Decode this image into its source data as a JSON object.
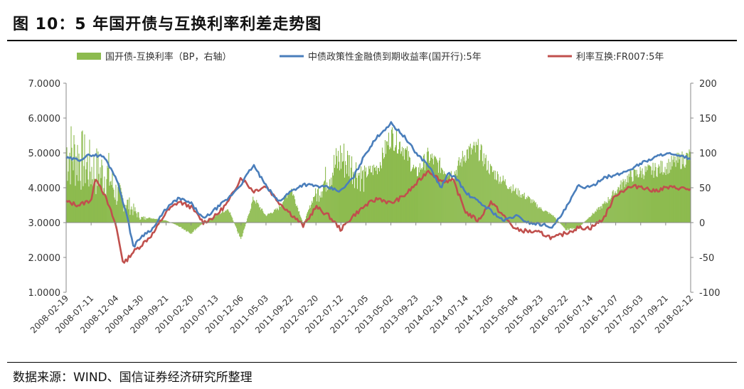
{
  "title": "图 10：5 年国开债与互换利率利差走势图",
  "source": "数据来源：WIND、国信证券经济研究所整理",
  "chart_data": {
    "type": "line",
    "legend": [
      {
        "name": "国开债-互换利率（BP，右轴）",
        "kind": "area",
        "color": "#8dbb4f"
      },
      {
        "name": "中债政策性金融债到期收益率(国开行):5年",
        "kind": "line",
        "color": "#4a7ebb"
      },
      {
        "name": "利率互换:FR007:5年",
        "kind": "line",
        "color": "#c0504d"
      }
    ],
    "x_ticks": [
      "2008-02-19",
      "2008-07-11",
      "2008-12-04",
      "2009-04-30",
      "2009-09-21",
      "2010-02-20",
      "2010-07-13",
      "2010-12-06",
      "2011-05-03",
      "2011-09-22",
      "2012-02-20",
      "2012-07-12",
      "2012-12-05",
      "2013-05-02",
      "2013-09-23",
      "2014-02-19",
      "2014-07-14",
      "2014-12-05",
      "2015-05-04",
      "2015-09-23",
      "2016-02-22",
      "2016-07-14",
      "2016-12-07",
      "2017-05-03",
      "2017-09-21",
      "2018-02-12"
    ],
    "y_left": {
      "min": 1,
      "max": 7,
      "ticks": [
        "1.0000",
        "2.0000",
        "3.0000",
        "4.0000",
        "5.0000",
        "6.0000",
        "7.0000"
      ]
    },
    "y_right": {
      "min": -100,
      "max": 200,
      "ticks": [
        "-100",
        "-50",
        "0",
        "50",
        "100",
        "150",
        "200"
      ]
    },
    "series": [
      {
        "name": "中债政策性金融债到期收益率(国开行):5年",
        "axis": "left",
        "x": [
          0,
          0.5,
          1,
          1.5,
          2,
          2.4,
          2.7,
          3,
          3.5,
          4,
          4.5,
          5,
          5.5,
          6,
          6.5,
          7,
          7.5,
          8,
          8.5,
          9,
          9.5,
          10,
          10.5,
          11,
          11.5,
          12,
          12.5,
          13,
          13.5,
          14,
          14.5,
          15,
          15.3,
          15.6,
          16,
          16.5,
          17,
          17.5,
          18,
          18.5,
          19,
          19.5,
          20,
          20.5,
          21,
          21.5,
          22,
          22.5,
          23,
          23.5,
          24,
          24.5,
          25
        ],
        "values": [
          4.85,
          4.8,
          4.95,
          4.9,
          4.3,
          3.3,
          2.3,
          2.6,
          2.85,
          3.4,
          3.7,
          3.55,
          3.1,
          3.4,
          3.7,
          4.1,
          4.65,
          4.05,
          3.6,
          3.9,
          4.1,
          4.05,
          4.0,
          3.9,
          4.3,
          5.0,
          5.5,
          5.85,
          5.5,
          5.0,
          4.65,
          4.0,
          4.4,
          4.3,
          3.85,
          3.6,
          3.35,
          3.05,
          3.2,
          3.0,
          2.95,
          2.88,
          3.4,
          4.05,
          4.0,
          4.3,
          4.35,
          4.5,
          4.7,
          4.85,
          5.0,
          4.9,
          4.85
        ]
      },
      {
        "name": "利率互换:FR007:5年",
        "axis": "left",
        "x": [
          0,
          0.5,
          1,
          1.2,
          1.5,
          1.8,
          2,
          2.3,
          2.6,
          3,
          3.5,
          4,
          4.5,
          5,
          5.5,
          6,
          6.5,
          7,
          7.5,
          8,
          8.5,
          9,
          9.5,
          10,
          10.5,
          11,
          11.5,
          12,
          12.5,
          13,
          13.5,
          14,
          14.5,
          15,
          15.5,
          16,
          16.5,
          17,
          17.5,
          18,
          18.5,
          19,
          19.5,
          20,
          20.5,
          21,
          21.5,
          22,
          22.5,
          23,
          23.5,
          24,
          24.5,
          25
        ],
        "values": [
          3.6,
          3.5,
          3.65,
          4.3,
          3.85,
          3.3,
          2.9,
          1.8,
          2.1,
          2.35,
          2.7,
          3.3,
          3.6,
          3.45,
          3.0,
          3.2,
          3.6,
          4.3,
          3.9,
          4.05,
          3.6,
          3.25,
          2.9,
          3.45,
          3.2,
          2.8,
          3.2,
          3.5,
          3.7,
          3.55,
          3.75,
          4.1,
          4.5,
          4.2,
          4.2,
          3.3,
          3.05,
          3.6,
          3.2,
          2.8,
          2.75,
          2.7,
          2.55,
          2.7,
          2.85,
          2.85,
          3.1,
          3.8,
          4.0,
          4.05,
          3.9,
          4.0,
          4.0,
          3.95
        ]
      },
      {
        "name": "国开债-互换利率（BP，右轴）",
        "axis": "right",
        "x": [
          0,
          0.5,
          1,
          1.3,
          1.7,
          2,
          2.5,
          3,
          3.5,
          4,
          4.5,
          5,
          5.5,
          6,
          6.5,
          7,
          7.5,
          8,
          8.5,
          9,
          9.5,
          10,
          10.5,
          11,
          11.3,
          11.6,
          12,
          12.5,
          13,
          13.5,
          14,
          14.5,
          15,
          15.5,
          16,
          16.5,
          17,
          17.5,
          18,
          18.5,
          19,
          19.5,
          20,
          20.5,
          21,
          21.5,
          22,
          22.5,
          23,
          23.5,
          24,
          24.5,
          25
        ],
        "values": [
          120,
          110,
          90,
          85,
          80,
          50,
          30,
          8,
          6,
          3,
          -5,
          -15,
          0,
          10,
          20,
          -25,
          35,
          10,
          20,
          50,
          -2,
          45,
          80,
          110,
          100,
          88,
          70,
          80,
          125,
          108,
          70,
          95,
          80,
          68,
          100,
          105,
          75,
          60,
          45,
          35,
          20,
          10,
          -10,
          -8,
          10,
          25,
          45,
          65,
          72,
          75,
          80,
          88,
          95
        ]
      }
    ]
  }
}
